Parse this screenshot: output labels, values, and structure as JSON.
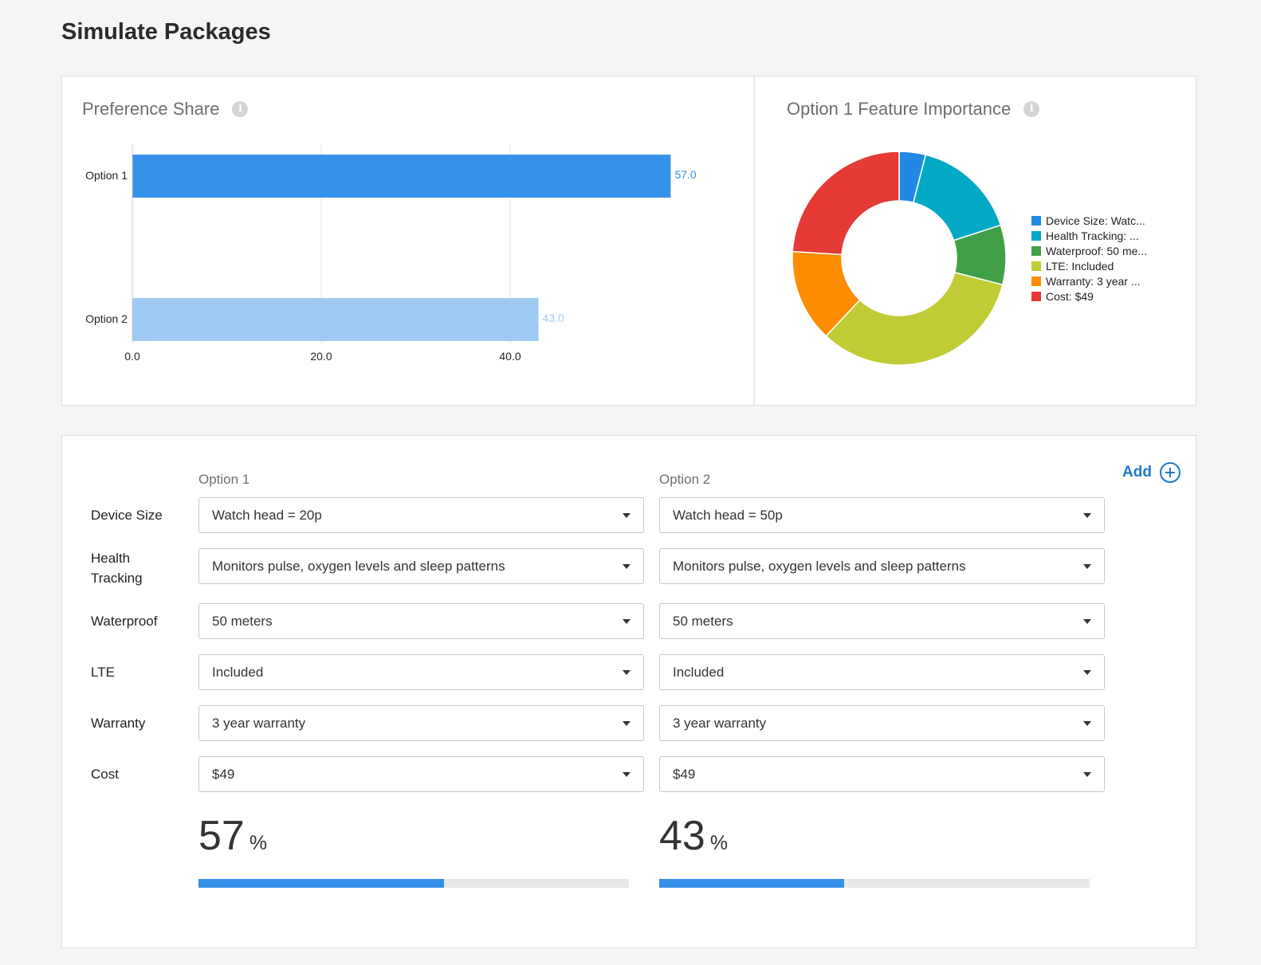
{
  "page_title": "Simulate Packages",
  "preference_share": {
    "title": "Preference Share",
    "info_icon": "info-icon"
  },
  "feature_importance": {
    "title": "Option 1 Feature Importance",
    "info_icon": "info-icon"
  },
  "chart_data": [
    {
      "type": "bar",
      "orientation": "horizontal",
      "title": "Preference Share",
      "categories": [
        "Option 1",
        "Option 2"
      ],
      "values": [
        57.0,
        43.0
      ],
      "value_labels": [
        "57.0",
        "43.0"
      ],
      "colors": [
        "#3592e8",
        "#9ecaf3"
      ],
      "x_ticks": [
        "0.0",
        "20.0",
        "40.0"
      ],
      "xlim": [
        0,
        60
      ],
      "grid": true
    },
    {
      "type": "pie",
      "donut": true,
      "title": "Option 1 Feature Importance",
      "labels": [
        "Device Size: Watc...",
        "Health Tracking: ...",
        "Waterproof: 50 me...",
        "LTE: Included",
        "Warranty: 3 year ...",
        "Cost: $49"
      ],
      "values": [
        4,
        16,
        9,
        33,
        14,
        24
      ],
      "colors": [
        "#2289e3",
        "#03a9c4",
        "#41a047",
        "#c1cb35",
        "#fd8c00",
        "#e53a36"
      ],
      "legend_position": "right"
    }
  ],
  "config": {
    "column_headers": [
      "Option 1",
      "Option 2"
    ],
    "add_label": "Add",
    "rows": [
      {
        "label": "Device Size",
        "values": [
          "Watch head = 20p",
          "Watch head = 50p"
        ]
      },
      {
        "label": "Health Tracking",
        "values": [
          "Monitors pulse, oxygen levels and sleep patterns",
          "Monitors pulse, oxygen levels and sleep patterns"
        ]
      },
      {
        "label": "Waterproof",
        "values": [
          "50 meters",
          "50 meters"
        ]
      },
      {
        "label": "LTE",
        "values": [
          "Included",
          "Included"
        ]
      },
      {
        "label": "Warranty",
        "values": [
          "3 year warranty",
          "3 year warranty"
        ]
      },
      {
        "label": "Cost",
        "values": [
          "$49",
          "$49"
        ]
      }
    ],
    "results": [
      {
        "pct": "57",
        "unit": "%",
        "fraction": 0.57
      },
      {
        "pct": "43",
        "unit": "%",
        "fraction": 0.43
      }
    ],
    "progress_color": "#3590e8"
  }
}
